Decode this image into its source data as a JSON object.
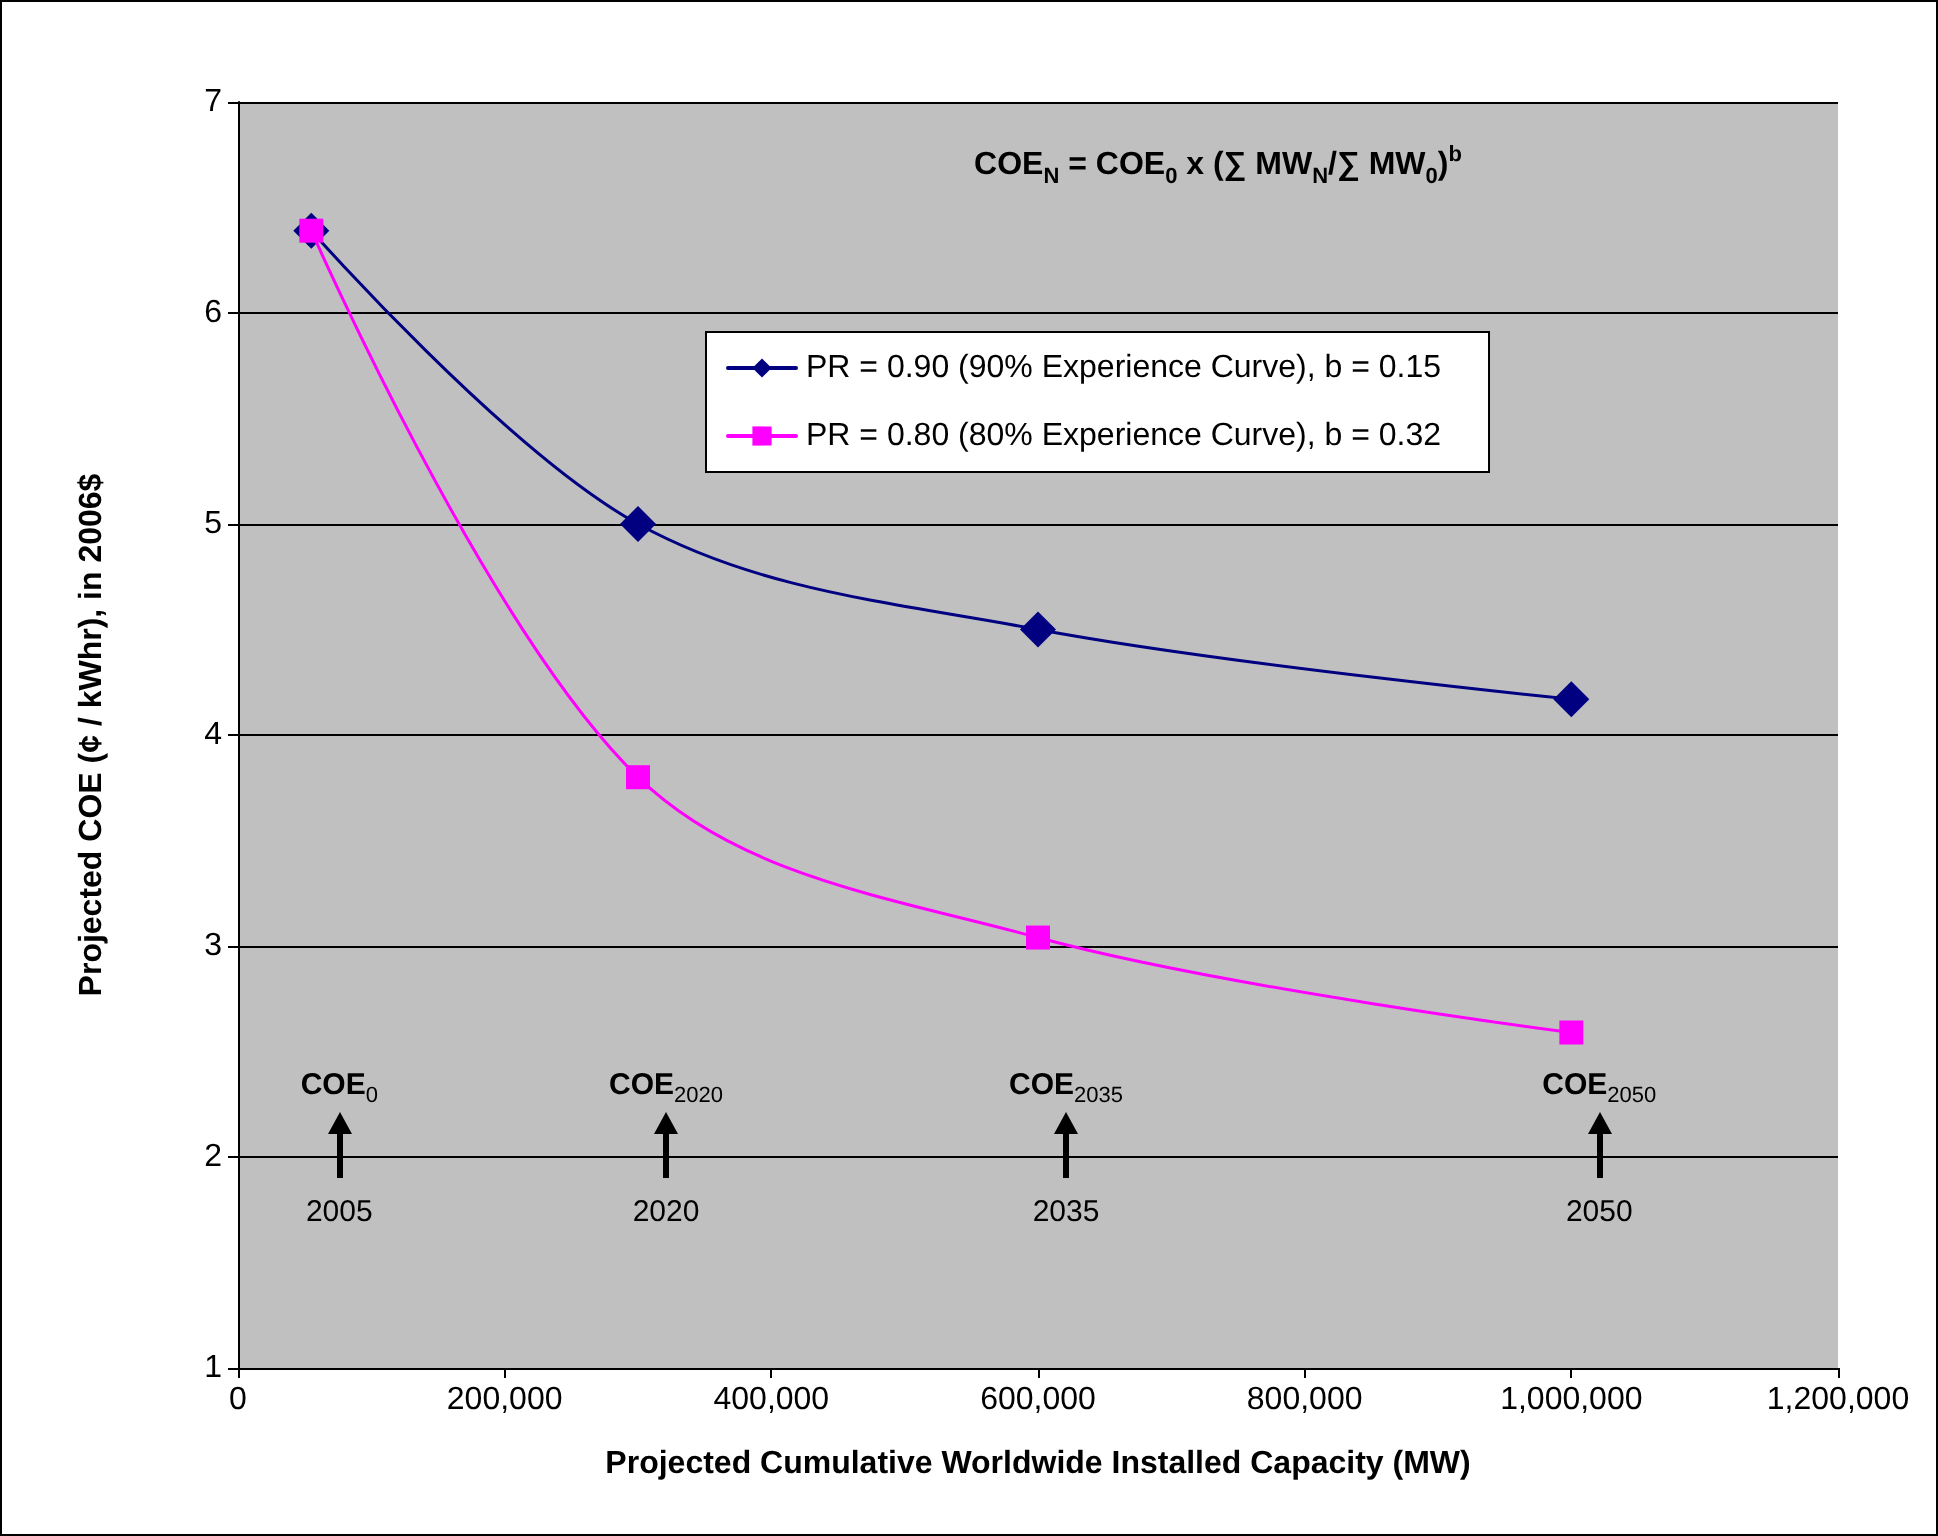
{
  "chart_data": {
    "type": "line",
    "xlabel": "Projected Cumulative Worldwide Installed Capacity (MW)",
    "ylabel": "Projected COE (¢ / kWhr), in 2006$",
    "x": [
      55000,
      300000,
      600000,
      1000000
    ],
    "series": [
      {
        "name": "PR = 0.90 (90% Experience Curve), b = 0.15",
        "color": "#000080",
        "marker": "diamond",
        "values": [
          6.39,
          5.0,
          4.5,
          4.17
        ]
      },
      {
        "name": "PR = 0.80 (80% Experience Curve), b = 0.32",
        "color": "#ff00ff",
        "marker": "square",
        "values": [
          6.39,
          3.8,
          3.04,
          2.59
        ]
      }
    ],
    "xlim": [
      0,
      1200000
    ],
    "xticks": [
      {
        "value": 0,
        "label": "0"
      },
      {
        "value": 200000,
        "label": "200,000"
      },
      {
        "value": 400000,
        "label": "400,000"
      },
      {
        "value": 600000,
        "label": "600,000"
      },
      {
        "value": 800000,
        "label": "800,000"
      },
      {
        "value": 1000000,
        "label": "1,000,000"
      },
      {
        "value": 1200000,
        "label": "1,200,000"
      }
    ],
    "ylim": [
      1,
      7
    ],
    "yticks": [
      1,
      2,
      3,
      4,
      5,
      6,
      7
    ],
    "grid": "y",
    "legend": "top right",
    "annotations": [
      "COE$_{N}$ = COE$_{0}$ x (∑ MW$_{N}$/∑ MW$_{0}$)$^{b}$",
      "COE$_{0}$",
      "2005",
      "COE$_{2020}$",
      "2020",
      "COE$_{2035}$",
      "2035",
      "COE$_{2050}$",
      "2050"
    ]
  }
}
